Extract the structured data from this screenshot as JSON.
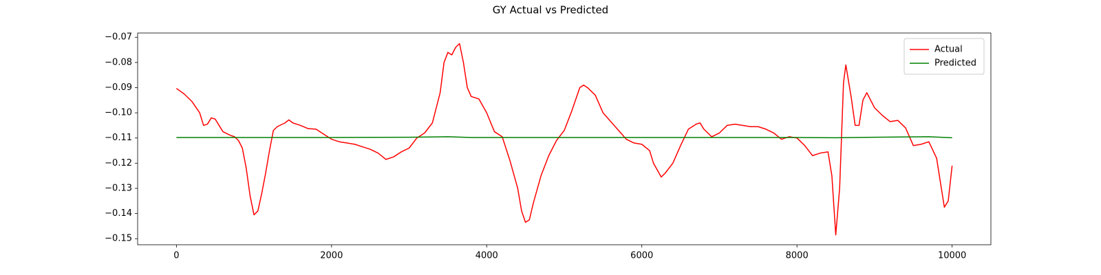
{
  "chart_data": {
    "type": "line",
    "title": "GY Actual vs Predicted",
    "xlim": [
      -500,
      10500
    ],
    "ylim": [
      -0.1524,
      -0.0683
    ],
    "xticks": [
      0,
      2000,
      4000,
      6000,
      8000,
      10000
    ],
    "yticks": [
      {
        "value": -0.15,
        "label": "−0.15"
      },
      {
        "value": -0.14,
        "label": "−0.14"
      },
      {
        "value": -0.13,
        "label": "−0.13"
      },
      {
        "value": -0.12,
        "label": "−0.12"
      },
      {
        "value": -0.11,
        "label": "−0.11"
      },
      {
        "value": -0.1,
        "label": "−0.10"
      },
      {
        "value": -0.09,
        "label": "−0.09"
      },
      {
        "value": -0.08,
        "label": "−0.08"
      },
      {
        "value": -0.07,
        "label": "−0.07"
      }
    ],
    "grid": false,
    "legend": "upper-right",
    "series": [
      {
        "name": "Actual",
        "color": "#ff0000",
        "x": [
          0,
          100,
          200,
          300,
          350,
          400,
          450,
          500,
          600,
          700,
          750,
          800,
          850,
          900,
          950,
          1000,
          1050,
          1100,
          1150,
          1200,
          1250,
          1300,
          1400,
          1450,
          1500,
          1600,
          1700,
          1800,
          1900,
          2000,
          2100,
          2200,
          2300,
          2400,
          2500,
          2600,
          2700,
          2800,
          2900,
          3000,
          3100,
          3200,
          3300,
          3400,
          3450,
          3500,
          3550,
          3600,
          3650,
          3700,
          3750,
          3800,
          3900,
          4000,
          4100,
          4200,
          4300,
          4400,
          4450,
          4500,
          4550,
          4600,
          4700,
          4800,
          4900,
          5000,
          5100,
          5200,
          5250,
          5300,
          5400,
          5500,
          5600,
          5700,
          5800,
          5900,
          6000,
          6100,
          6150,
          6250,
          6300,
          6400,
          6500,
          6600,
          6700,
          6750,
          6800,
          6900,
          7000,
          7100,
          7200,
          7300,
          7400,
          7500,
          7600,
          7700,
          7800,
          7900,
          8000,
          8100,
          8200,
          8300,
          8400,
          8450,
          8500,
          8550,
          8600,
          8630,
          8700,
          8750,
          8800,
          8850,
          8900,
          9000,
          9100,
          9200,
          9300,
          9400,
          9500,
          9600,
          9700,
          9800,
          9900,
          9950,
          10000
        ],
        "values": [
          -0.0903,
          -0.0925,
          -0.0955,
          -0.1,
          -0.105,
          -0.1045,
          -0.102,
          -0.1025,
          -0.1075,
          -0.109,
          -0.1095,
          -0.111,
          -0.114,
          -0.122,
          -0.133,
          -0.1405,
          -0.139,
          -0.132,
          -0.124,
          -0.115,
          -0.107,
          -0.1055,
          -0.104,
          -0.1028,
          -0.104,
          -0.105,
          -0.1063,
          -0.1065,
          -0.1085,
          -0.1105,
          -0.1115,
          -0.112,
          -0.1125,
          -0.1135,
          -0.1145,
          -0.116,
          -0.1185,
          -0.1175,
          -0.1155,
          -0.114,
          -0.11,
          -0.108,
          -0.104,
          -0.092,
          -0.08,
          -0.076,
          -0.077,
          -0.074,
          -0.0725,
          -0.08,
          -0.09,
          -0.0935,
          -0.0945,
          -0.1,
          -0.1075,
          -0.1095,
          -0.119,
          -0.13,
          -0.139,
          -0.1435,
          -0.1425,
          -0.136,
          -0.125,
          -0.117,
          -0.111,
          -0.107,
          -0.099,
          -0.09,
          -0.089,
          -0.09,
          -0.093,
          -0.1,
          -0.1035,
          -0.107,
          -0.1105,
          -0.112,
          -0.1125,
          -0.115,
          -0.12,
          -0.1255,
          -0.124,
          -0.12,
          -0.113,
          -0.1065,
          -0.1045,
          -0.104,
          -0.1065,
          -0.1095,
          -0.108,
          -0.105,
          -0.1045,
          -0.105,
          -0.1055,
          -0.1055,
          -0.1065,
          -0.108,
          -0.1105,
          -0.1095,
          -0.11,
          -0.113,
          -0.117,
          -0.116,
          -0.1155,
          -0.125,
          -0.1485,
          -0.13,
          -0.088,
          -0.081,
          -0.094,
          -0.105,
          -0.105,
          -0.095,
          -0.092,
          -0.098,
          -0.101,
          -0.1035,
          -0.103,
          -0.106,
          -0.113,
          -0.1125,
          -0.1115,
          -0.118,
          -0.1375,
          -0.135,
          -0.121
        ]
      },
      {
        "name": "Predicted",
        "color": "#008000",
        "x": [
          0,
          1000,
          2000,
          3000,
          3500,
          3800,
          5000,
          6000,
          7000,
          8000,
          8500,
          9000,
          9700,
          10000
        ],
        "values": [
          -0.1098,
          -0.1098,
          -0.1098,
          -0.1097,
          -0.1095,
          -0.1098,
          -0.1098,
          -0.1098,
          -0.1098,
          -0.1098,
          -0.1099,
          -0.1097,
          -0.1095,
          -0.1099
        ]
      }
    ]
  }
}
